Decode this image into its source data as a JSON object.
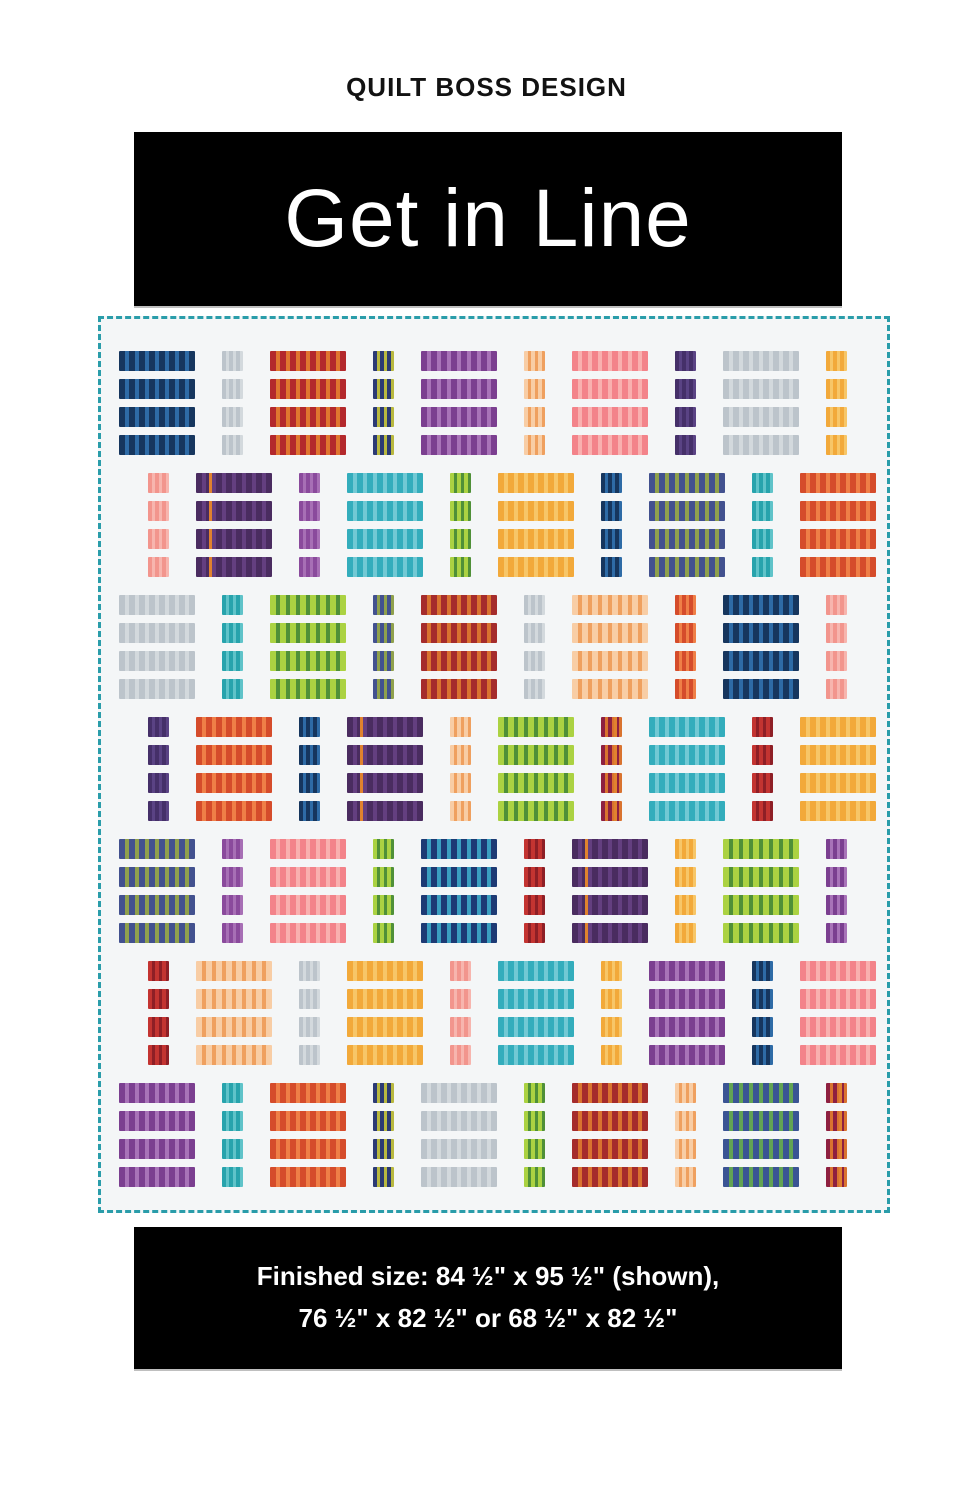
{
  "page": {
    "brand": "QUILT BOSS DESIGN",
    "title": "Get in Line",
    "footer_line1": "Finished size: 84 ½\" x 95 ½\" (shown),",
    "footer_line2": "76 ½\" x 82 ½\" or 68 ½\" x 82 ½\""
  },
  "quilt": {
    "border_color": "#2a9daa",
    "background_color": "#f4f6f7",
    "bars_per_block": 4,
    "palette": {
      "navy": {
        "base": "#16365e",
        "stripe": "#2e6ba6"
      },
      "gray": {
        "base": "#bcc4cb",
        "stripe": "#d3d9dd"
      },
      "redOrange": {
        "base": "#b3282c",
        "stripe": "#e0762f"
      },
      "navyYellow": {
        "base": "#2b3a74",
        "stripe": "#b8b840"
      },
      "purple": {
        "base": "#7b3f90",
        "stripe": "#a873b8"
      },
      "peach": {
        "base": "#f8cda5",
        "stripe": "#efa05f"
      },
      "coral": {
        "base": "#f3838a",
        "stripe": "#f9b0af"
      },
      "indigo": {
        "base": "#453069",
        "stripe": "#5a4384"
      },
      "gold": {
        "base": "#f2a93a",
        "stripe": "#f7c668"
      },
      "salmon": {
        "base": "#f2958d",
        "stripe": "#f7b5ae"
      },
      "aubergine": {
        "base": "#4a2c60",
        "stripe": "#643f80",
        "accent": "#e0822e"
      },
      "violet": {
        "base": "#8a4a9c",
        "stripe": "#a76fb5"
      },
      "teal": {
        "base": "#33adbc",
        "stripe": "#71c9d4"
      },
      "lime": {
        "base": "#abd242",
        "stripe": "#4f9038"
      },
      "navyTeal": {
        "base": "#1d3a74",
        "stripe": "#3a9fc0"
      },
      "navyOlive": {
        "base": "#42518f",
        "stripe": "#8fa04d"
      },
      "tealDark": {
        "base": "#27a3ac",
        "stripe": "#5fc3c9"
      },
      "flame": {
        "base": "#d54c2b",
        "stripe": "#ef7f47"
      },
      "maroon": {
        "base": "#a52c2c",
        "stripe": "#d9732f"
      },
      "red": {
        "base": "#c33431",
        "stripe": "#8e1f26"
      },
      "crimson": {
        "base": "#8e2040",
        "stripe": "#d9732f",
        "accent": "#e0822e"
      },
      "navyGreen": {
        "base": "#3a5494",
        "stripe": "#62a353"
      }
    },
    "rows": [
      [
        {
          "size": "wide",
          "color": "navy"
        },
        {
          "size": "narrow",
          "color": "gray"
        },
        {
          "size": "wide",
          "color": "redOrange"
        },
        {
          "size": "narrow",
          "color": "navyYellow"
        },
        {
          "size": "wide",
          "color": "purple"
        },
        {
          "size": "narrow",
          "color": "peach"
        },
        {
          "size": "wide",
          "color": "coral"
        },
        {
          "size": "narrow",
          "color": "indigo"
        },
        {
          "size": "wide",
          "color": "gray"
        },
        {
          "size": "narrow",
          "color": "gold"
        }
      ],
      [
        {
          "size": "narrow",
          "color": "salmon"
        },
        {
          "size": "wide",
          "color": "aubergine"
        },
        {
          "size": "narrow",
          "color": "violet"
        },
        {
          "size": "wide",
          "color": "teal"
        },
        {
          "size": "narrow",
          "color": "lime"
        },
        {
          "size": "wide",
          "color": "gold"
        },
        {
          "size": "narrow",
          "color": "navy"
        },
        {
          "size": "wide",
          "color": "navyOlive"
        },
        {
          "size": "narrow",
          "color": "tealDark"
        },
        {
          "size": "wide",
          "color": "flame"
        }
      ],
      [
        {
          "size": "wide",
          "color": "gray"
        },
        {
          "size": "narrow",
          "color": "tealDark"
        },
        {
          "size": "wide",
          "color": "lime"
        },
        {
          "size": "narrow",
          "color": "navyOlive"
        },
        {
          "size": "wide",
          "color": "maroon"
        },
        {
          "size": "narrow",
          "color": "gray"
        },
        {
          "size": "wide",
          "color": "peach"
        },
        {
          "size": "narrow",
          "color": "flame"
        },
        {
          "size": "wide",
          "color": "navy"
        },
        {
          "size": "narrow",
          "color": "salmon"
        }
      ],
      [
        {
          "size": "narrow",
          "color": "indigo"
        },
        {
          "size": "wide",
          "color": "flame"
        },
        {
          "size": "narrow",
          "color": "navy"
        },
        {
          "size": "wide",
          "color": "aubergine"
        },
        {
          "size": "narrow",
          "color": "peach"
        },
        {
          "size": "wide",
          "color": "lime"
        },
        {
          "size": "narrow",
          "color": "crimson"
        },
        {
          "size": "wide",
          "color": "teal"
        },
        {
          "size": "narrow",
          "color": "red"
        },
        {
          "size": "wide",
          "color": "gold"
        }
      ],
      [
        {
          "size": "wide",
          "color": "navyOlive"
        },
        {
          "size": "narrow",
          "color": "violet"
        },
        {
          "size": "wide",
          "color": "coral"
        },
        {
          "size": "narrow",
          "color": "lime"
        },
        {
          "size": "wide",
          "color": "navyTeal"
        },
        {
          "size": "narrow",
          "color": "red"
        },
        {
          "size": "wide",
          "color": "aubergine"
        },
        {
          "size": "narrow",
          "color": "gold"
        },
        {
          "size": "wide",
          "color": "lime"
        },
        {
          "size": "narrow",
          "color": "purple"
        }
      ],
      [
        {
          "size": "narrow",
          "color": "red"
        },
        {
          "size": "wide",
          "color": "peach"
        },
        {
          "size": "narrow",
          "color": "gray"
        },
        {
          "size": "wide",
          "color": "gold"
        },
        {
          "size": "narrow",
          "color": "salmon"
        },
        {
          "size": "wide",
          "color": "teal"
        },
        {
          "size": "narrow",
          "color": "gold"
        },
        {
          "size": "wide",
          "color": "purple"
        },
        {
          "size": "narrow",
          "color": "navy"
        },
        {
          "size": "wide",
          "color": "coral"
        }
      ],
      [
        {
          "size": "wide",
          "color": "purple"
        },
        {
          "size": "narrow",
          "color": "tealDark"
        },
        {
          "size": "wide",
          "color": "flame"
        },
        {
          "size": "narrow",
          "color": "navyYellow"
        },
        {
          "size": "wide",
          "color": "gray"
        },
        {
          "size": "narrow",
          "color": "lime"
        },
        {
          "size": "wide",
          "color": "maroon"
        },
        {
          "size": "narrow",
          "color": "peach"
        },
        {
          "size": "wide",
          "color": "navyGreen"
        },
        {
          "size": "narrow",
          "color": "crimson"
        }
      ]
    ]
  }
}
